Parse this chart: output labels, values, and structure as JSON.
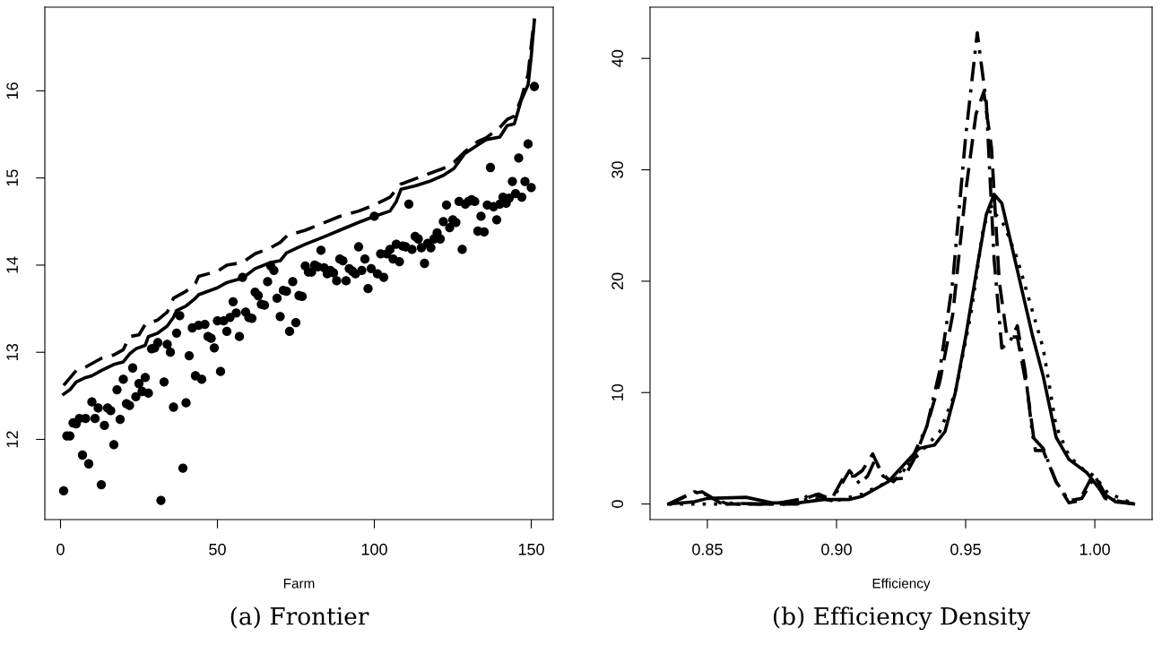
{
  "chart_data": [
    {
      "type": "scatter",
      "title": "(a) Frontier",
      "xlabel": "Farm",
      "xlim": [
        -5,
        157
      ],
      "ylim": [
        11.08,
        16.96
      ],
      "xticks": [
        0,
        50,
        100,
        150
      ],
      "yticks": [
        12,
        13,
        14,
        15,
        16
      ],
      "grid": false,
      "legend": false,
      "series": [
        {
          "marker": "circle",
          "color": "#000000",
          "x": [
            1,
            2,
            3,
            4,
            5,
            6,
            7,
            8,
            9,
            10,
            11,
            12,
            13,
            14,
            15,
            16,
            17,
            18,
            19,
            20,
            21,
            22,
            23,
            24,
            25,
            26,
            27,
            28,
            29,
            30,
            31,
            32,
            33,
            34,
            35,
            36,
            37,
            38,
            39,
            40,
            41,
            42,
            43,
            44,
            45,
            46,
            47,
            48,
            49,
            50,
            51,
            52,
            53,
            54,
            55,
            56,
            57,
            58,
            59,
            60,
            61,
            62,
            63,
            64,
            65,
            66,
            67,
            68,
            69,
            70,
            71,
            72,
            73,
            74,
            75,
            76,
            77,
            78,
            79,
            80,
            81,
            82,
            83,
            84,
            85,
            86,
            87,
            88,
            89,
            90,
            91,
            92,
            93,
            94,
            95,
            96,
            97,
            98,
            99,
            100,
            101,
            102,
            103,
            104,
            105,
            106,
            107,
            108,
            109,
            110,
            111,
            112,
            113,
            114,
            115,
            116,
            117,
            118,
            119,
            120,
            121,
            122,
            123,
            124,
            125,
            126,
            127,
            128,
            129,
            130,
            131,
            132,
            133,
            134,
            135,
            136,
            137,
            138,
            139,
            140,
            141,
            142,
            143,
            144,
            145,
            146,
            147,
            148,
            149,
            150,
            151
          ],
          "values": [
            11.41,
            12.04,
            12.04,
            12.19,
            12.18,
            12.24,
            11.82,
            12.24,
            11.72,
            12.43,
            12.24,
            12.36,
            11.48,
            12.16,
            12.36,
            12.33,
            11.94,
            12.57,
            12.23,
            12.69,
            12.41,
            12.39,
            12.82,
            12.49,
            12.64,
            12.55,
            12.71,
            12.53,
            13.04,
            13.05,
            13.11,
            11.3,
            12.66,
            13.09,
            13.0,
            12.37,
            13.22,
            13.42,
            11.67,
            12.42,
            12.96,
            13.28,
            12.73,
            13.31,
            12.69,
            13.32,
            13.18,
            13.16,
            13.05,
            13.36,
            12.78,
            13.36,
            13.24,
            13.4,
            13.58,
            13.45,
            13.18,
            13.86,
            13.46,
            13.4,
            13.39,
            13.69,
            13.65,
            13.55,
            13.54,
            13.81,
            13.99,
            13.94,
            13.62,
            13.41,
            13.71,
            13.7,
            13.24,
            13.81,
            13.34,
            13.65,
            13.64,
            13.99,
            13.92,
            13.92,
            14.0,
            13.98,
            14.17,
            13.97,
            13.9,
            13.94,
            13.91,
            13.82,
            14.07,
            14.05,
            13.82,
            13.96,
            13.93,
            13.9,
            14.21,
            13.94,
            14.07,
            13.73,
            13.96,
            14.56,
            13.9,
            14.13,
            13.86,
            14.13,
            14.18,
            14.07,
            14.24,
            14.04,
            14.22,
            14.21,
            14.7,
            14.18,
            14.33,
            14.3,
            14.2,
            14.02,
            14.25,
            14.2,
            14.3,
            14.37,
            14.3,
            14.5,
            14.69,
            14.43,
            14.52,
            14.49,
            14.73,
            14.18,
            14.7,
            14.73,
            14.75,
            14.73,
            14.39,
            14.56,
            14.38,
            14.69,
            15.12,
            14.67,
            14.52,
            14.7,
            14.78,
            14.71,
            14.77,
            14.96,
            14.82,
            15.23,
            14.78,
            14.96,
            15.39,
            14.89,
            16.05
          ]
        },
        {
          "type": "line",
          "line_style": "solid",
          "color": "#000000",
          "x": [
            1,
            3,
            5,
            8,
            10,
            13,
            17,
            20,
            22,
            24,
            27,
            28,
            31,
            34,
            36,
            37,
            40,
            43,
            44,
            50,
            53,
            58,
            62,
            67,
            70,
            72,
            75,
            78,
            83.6,
            89,
            95,
            100,
            105,
            107,
            108.5,
            113,
            117.5,
            122,
            125.4,
            128.8,
            133,
            135.6,
            140,
            142.3,
            144.6,
            146.8,
            149,
            150,
            151
          ],
          "values": [
            12.52,
            12.57,
            12.66,
            12.71,
            12.73,
            12.79,
            12.86,
            12.89,
            12.98,
            13.04,
            13.08,
            13.18,
            13.22,
            13.3,
            13.4,
            13.48,
            13.53,
            13.62,
            13.66,
            13.74,
            13.8,
            13.85,
            13.96,
            14.03,
            14.05,
            14.14,
            14.19,
            14.24,
            14.32,
            14.4,
            14.49,
            14.56,
            14.62,
            14.73,
            14.87,
            14.91,
            14.96,
            15.03,
            15.11,
            15.28,
            15.38,
            15.44,
            15.47,
            15.6,
            15.62,
            15.89,
            16.07,
            16.4,
            16.81
          ]
        },
        {
          "type": "line",
          "line_style": "dashed",
          "color": "#000000",
          "x": [
            1,
            5,
            8,
            13,
            17,
            20,
            22,
            25,
            27,
            31,
            34,
            36,
            40,
            43,
            44,
            50,
            53,
            58,
            62,
            67,
            70,
            72.3,
            78,
            83.6,
            89,
            95,
            100,
            105,
            108.5,
            113,
            117.5,
            122,
            125.4,
            128.8,
            133,
            135.6,
            140,
            142.3,
            144.6,
            146.8,
            149,
            150,
            151
          ],
          "values": [
            12.62,
            12.79,
            12.83,
            12.93,
            12.97,
            13.03,
            13.18,
            13.2,
            13.32,
            13.37,
            13.46,
            13.62,
            13.7,
            13.79,
            13.87,
            13.93,
            14.0,
            14.03,
            14.13,
            14.2,
            14.26,
            14.34,
            14.4,
            14.48,
            14.56,
            14.62,
            14.69,
            14.78,
            14.93,
            14.99,
            15.05,
            15.11,
            15.18,
            15.3,
            15.42,
            15.46,
            15.58,
            15.67,
            15.71,
            15.91,
            16.19,
            16.52,
            16.83
          ]
        }
      ]
    },
    {
      "type": "line",
      "title": "(b) Efficiency Density",
      "xlabel": "Efficiency",
      "xlim": [
        0.8278,
        1.0222
      ],
      "ylim": [
        -1.4,
        44.6
      ],
      "xticks": [
        0.85,
        {
          "value": 0.9,
          "label": "0.90"
        },
        0.95,
        {
          "value": 1.0,
          "label": "1.00"
        }
      ],
      "yticks": [
        0,
        10,
        20,
        30,
        40
      ],
      "grid": false,
      "legend": false,
      "series": [
        {
          "line_style": "solid",
          "color": "#000000",
          "x": [
            0.835,
            0.845,
            0.85,
            0.865,
            0.875,
            0.885,
            0.895,
            0.905,
            0.91,
            0.92,
            0.928,
            0.932,
            0.938,
            0.942,
            0.946,
            0.95,
            0.955,
            0.958,
            0.961,
            0.964,
            0.968,
            0.972,
            0.976,
            0.98,
            0.985,
            0.99,
            0.997,
            1.003,
            1.008,
            1.015
          ],
          "values": [
            0,
            0.2,
            0.5,
            0.6,
            0.1,
            0.1,
            0.4,
            0.4,
            0.7,
            2.0,
            4.0,
            5.0,
            5.3,
            6.5,
            10,
            15,
            22,
            26,
            27.8,
            27,
            23,
            19,
            15,
            11.5,
            6,
            4,
            2.8,
            1,
            0.2,
            0
          ]
        },
        {
          "line_style": "dotted",
          "color": "#000000",
          "x": [
            0.835,
            0.87,
            0.88,
            0.89,
            0.9,
            0.91,
            0.92,
            0.93,
            0.94,
            0.946,
            0.952,
            0.957,
            0.96,
            0.965,
            0.97,
            0.975,
            0.98,
            0.985,
            0.99,
            0.996,
            1.0,
            1.005,
            1.015
          ],
          "values": [
            0,
            0,
            0,
            0.5,
            0.3,
            0.9,
            2,
            4,
            6.5,
            10,
            17,
            25,
            26.5,
            25,
            22,
            18,
            14,
            7,
            4.3,
            3,
            2.5,
            1,
            0
          ]
        },
        {
          "line_style": "dashdot",
          "color": "#000000",
          "x": [
            0.835,
            0.84,
            0.845,
            0.85,
            0.855,
            0.87,
            0.885,
            0.89,
            0.895,
            0.898,
            0.902,
            0.905,
            0.909,
            0.912,
            0.915,
            0.918,
            0.922,
            0.926,
            0.93,
            0.935,
            0.94,
            0.945,
            0.95,
            0.9545,
            0.958,
            0.961,
            0.964,
            0.967,
            0.97,
            0.973,
            0.976,
            0.98,
            0.985,
            0.99,
            0.995,
            1.0,
            1.005,
            1.015
          ],
          "values": [
            0,
            0.5,
            1.1,
            0.8,
            0.1,
            0,
            0,
            1,
            0.5,
            0.3,
            1.8,
            3,
            1.8,
            2.5,
            4,
            2.5,
            2,
            3,
            4.5,
            7,
            12,
            20,
            33,
            42.3,
            36,
            22,
            14,
            14.5,
            16,
            12,
            6,
            5,
            2,
            0.3,
            0.5,
            2.5,
            0.5,
            0
          ]
        },
        {
          "line_style": "dashed",
          "color": "#000000",
          "x": [
            0.835,
            0.843,
            0.848,
            0.852,
            0.858,
            0.875,
            0.888,
            0.893,
            0.898,
            0.903,
            0.907,
            0.91,
            0.914,
            0.917,
            0.92,
            0.926,
            0.93,
            0.935,
            0.94,
            0.945,
            0.95,
            0.954,
            0.957,
            0.96,
            0.963,
            0.966,
            0.97,
            0.974,
            0.977,
            0.98,
            0.985,
            0.99,
            0.994,
            0.999,
            1.004,
            1.015
          ],
          "values": [
            0,
            0.9,
            1.1,
            0.5,
            0,
            0,
            0.5,
            0.9,
            0.4,
            2.5,
            2.5,
            3,
            4.5,
            3,
            2.2,
            2.3,
            4,
            7,
            11,
            17,
            28,
            35,
            37,
            32,
            20,
            15,
            15,
            10,
            4.8,
            4.8,
            2,
            0.1,
            0.3,
            2.5,
            0.5,
            0
          ]
        }
      ]
    }
  ]
}
